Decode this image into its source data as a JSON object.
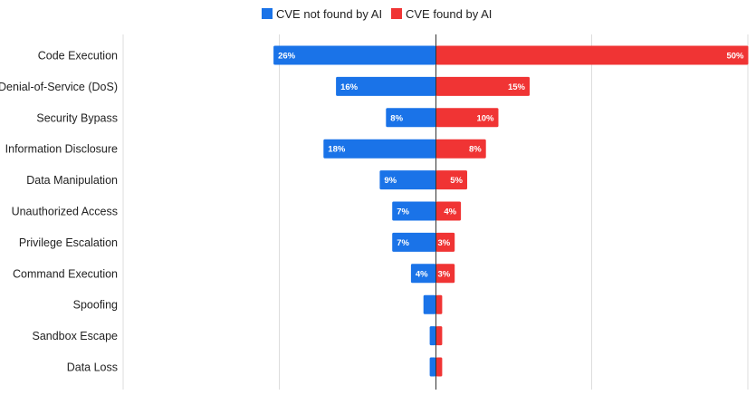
{
  "chart_data": {
    "type": "bar",
    "orientation": "horizontal-diverging",
    "categories": [
      "Code Execution",
      "Denial-of-Service (DoS)",
      "Security Bypass",
      "Information Disclosure",
      "Data Manipulation",
      "Unauthorized Access",
      "Privilege Escalation",
      "Command Execution",
      "Spoofing",
      "Sandbox Escape",
      "Data Loss"
    ],
    "series": [
      {
        "name": "CVE not found by AI",
        "color": "#1a73e8",
        "direction": "left",
        "values": [
          26,
          16,
          8,
          18,
          9,
          7,
          7,
          4,
          2,
          1,
          1
        ],
        "labels": [
          "26%",
          "16%",
          "8%",
          "18%",
          "9%",
          "7%",
          "7%",
          "4%",
          "",
          "",
          ""
        ]
      },
      {
        "name": "CVE found by AI",
        "color": "#f03434",
        "direction": "right",
        "values": [
          50,
          15,
          10,
          8,
          5,
          4,
          3,
          3,
          1,
          1,
          1
        ],
        "labels": [
          "50%",
          "15%",
          "10%",
          "8%",
          "5%",
          "4%",
          "3%",
          "3%",
          "",
          "",
          ""
        ]
      }
    ],
    "xlim": [
      -50,
      50
    ],
    "grid": true,
    "legend_position": "top-center",
    "title": "",
    "xlabel": "",
    "ylabel": ""
  }
}
